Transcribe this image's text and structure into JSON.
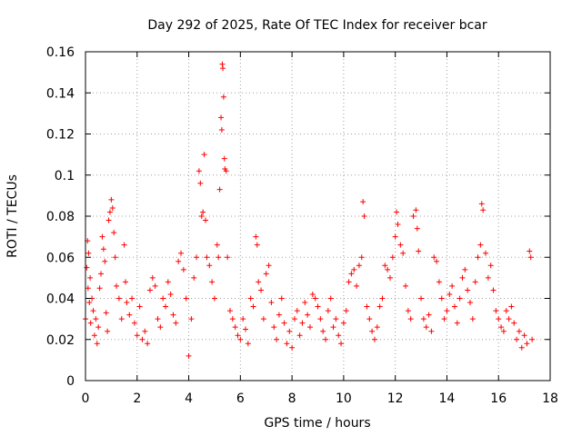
{
  "chart_data": {
    "type": "scatter",
    "title": "Day 292 of 2025, Rate Of TEC Index for receiver bcar",
    "xlabel": "GPS time / hours",
    "ylabel": "ROTI / TECUs",
    "xlim": [
      0,
      18
    ],
    "ylim": [
      0,
      0.16
    ],
    "xticks": [
      0,
      2,
      4,
      6,
      8,
      10,
      12,
      14,
      16,
      18
    ],
    "yticks": [
      0,
      0.02,
      0.04,
      0.06,
      0.08,
      0.1,
      0.12,
      0.14,
      0.16
    ],
    "xtick_labels": [
      "0",
      "2",
      "4",
      "6",
      "8",
      "10",
      "12",
      "14",
      "16",
      "18"
    ],
    "ytick_labels": [
      "0",
      "0.02",
      "0.04",
      "0.06",
      "0.08",
      "0.1",
      "0.12",
      "0.14",
      "0.16"
    ],
    "grid": true,
    "marker": "plus",
    "color": "#ff0000",
    "x_data_range": [
      0,
      17.3
    ],
    "series": [
      {
        "points": [
          [
            0.0,
            0.03
          ],
          [
            0.05,
            0.055
          ],
          [
            0.08,
            0.068
          ],
          [
            0.1,
            0.045
          ],
          [
            0.12,
            0.062
          ],
          [
            0.15,
            0.038
          ],
          [
            0.18,
            0.05
          ],
          [
            0.2,
            0.028
          ],
          [
            0.25,
            0.04
          ],
          [
            0.3,
            0.034
          ],
          [
            0.35,
            0.022
          ],
          [
            0.4,
            0.03
          ],
          [
            0.45,
            0.018
          ],
          [
            0.5,
            0.026
          ],
          [
            0.55,
            0.045
          ],
          [
            0.6,
            0.052
          ],
          [
            0.65,
            0.07
          ],
          [
            0.7,
            0.064
          ],
          [
            0.75,
            0.058
          ],
          [
            0.8,
            0.033
          ],
          [
            0.85,
            0.024
          ],
          [
            0.9,
            0.078
          ],
          [
            0.95,
            0.082
          ],
          [
            1.0,
            0.088
          ],
          [
            1.05,
            0.084
          ],
          [
            1.1,
            0.072
          ],
          [
            1.15,
            0.06
          ],
          [
            1.2,
            0.046
          ],
          [
            1.3,
            0.04
          ],
          [
            1.4,
            0.03
          ],
          [
            1.5,
            0.066
          ],
          [
            1.55,
            0.048
          ],
          [
            1.6,
            0.038
          ],
          [
            1.7,
            0.032
          ],
          [
            1.8,
            0.04
          ],
          [
            1.9,
            0.028
          ],
          [
            2.0,
            0.022
          ],
          [
            2.1,
            0.036
          ],
          [
            2.2,
            0.02
          ],
          [
            2.3,
            0.024
          ],
          [
            2.4,
            0.018
          ],
          [
            2.5,
            0.044
          ],
          [
            2.6,
            0.05
          ],
          [
            2.7,
            0.046
          ],
          [
            2.8,
            0.03
          ],
          [
            2.9,
            0.026
          ],
          [
            3.0,
            0.04
          ],
          [
            3.1,
            0.036
          ],
          [
            3.2,
            0.048
          ],
          [
            3.3,
            0.042
          ],
          [
            3.4,
            0.032
          ],
          [
            3.5,
            0.028
          ],
          [
            3.6,
            0.058
          ],
          [
            3.7,
            0.062
          ],
          [
            3.8,
            0.054
          ],
          [
            3.9,
            0.04
          ],
          [
            4.0,
            0.012
          ],
          [
            4.1,
            0.03
          ],
          [
            4.2,
            0.05
          ],
          [
            4.3,
            0.06
          ],
          [
            4.4,
            0.102
          ],
          [
            4.45,
            0.096
          ],
          [
            4.5,
            0.08
          ],
          [
            4.55,
            0.082
          ],
          [
            4.6,
            0.11
          ],
          [
            4.65,
            0.078
          ],
          [
            4.7,
            0.06
          ],
          [
            4.8,
            0.056
          ],
          [
            4.9,
            0.048
          ],
          [
            5.0,
            0.04
          ],
          [
            5.1,
            0.066
          ],
          [
            5.15,
            0.06
          ],
          [
            5.2,
            0.093
          ],
          [
            5.25,
            0.128
          ],
          [
            5.28,
            0.122
          ],
          [
            5.3,
            0.154
          ],
          [
            5.32,
            0.152
          ],
          [
            5.35,
            0.138
          ],
          [
            5.38,
            0.108
          ],
          [
            5.4,
            0.103
          ],
          [
            5.45,
            0.102
          ],
          [
            5.5,
            0.06
          ],
          [
            5.6,
            0.034
          ],
          [
            5.7,
            0.03
          ],
          [
            5.8,
            0.026
          ],
          [
            5.9,
            0.022
          ],
          [
            6.0,
            0.02
          ],
          [
            6.1,
            0.03
          ],
          [
            6.2,
            0.025
          ],
          [
            6.3,
            0.018
          ],
          [
            6.4,
            0.04
          ],
          [
            6.5,
            0.036
          ],
          [
            6.6,
            0.07
          ],
          [
            6.65,
            0.066
          ],
          [
            6.7,
            0.048
          ],
          [
            6.8,
            0.044
          ],
          [
            6.9,
            0.03
          ],
          [
            7.0,
            0.052
          ],
          [
            7.1,
            0.056
          ],
          [
            7.2,
            0.038
          ],
          [
            7.3,
            0.026
          ],
          [
            7.4,
            0.02
          ],
          [
            7.5,
            0.032
          ],
          [
            7.6,
            0.04
          ],
          [
            7.7,
            0.028
          ],
          [
            7.8,
            0.018
          ],
          [
            7.9,
            0.024
          ],
          [
            8.0,
            0.016
          ],
          [
            8.1,
            0.03
          ],
          [
            8.2,
            0.034
          ],
          [
            8.3,
            0.022
          ],
          [
            8.4,
            0.028
          ],
          [
            8.5,
            0.038
          ],
          [
            8.6,
            0.032
          ],
          [
            8.7,
            0.026
          ],
          [
            8.8,
            0.042
          ],
          [
            8.9,
            0.04
          ],
          [
            9.0,
            0.036
          ],
          [
            9.1,
            0.03
          ],
          [
            9.2,
            0.024
          ],
          [
            9.3,
            0.02
          ],
          [
            9.4,
            0.034
          ],
          [
            9.5,
            0.04
          ],
          [
            9.6,
            0.026
          ],
          [
            9.7,
            0.03
          ],
          [
            9.8,
            0.022
          ],
          [
            9.9,
            0.018
          ],
          [
            10.0,
            0.028
          ],
          [
            10.1,
            0.034
          ],
          [
            10.2,
            0.048
          ],
          [
            10.3,
            0.052
          ],
          [
            10.4,
            0.054
          ],
          [
            10.5,
            0.046
          ],
          [
            10.6,
            0.056
          ],
          [
            10.7,
            0.06
          ],
          [
            10.75,
            0.087
          ],
          [
            10.8,
            0.08
          ],
          [
            10.9,
            0.036
          ],
          [
            11.0,
            0.03
          ],
          [
            11.1,
            0.024
          ],
          [
            11.2,
            0.02
          ],
          [
            11.3,
            0.026
          ],
          [
            11.4,
            0.036
          ],
          [
            11.5,
            0.04
          ],
          [
            11.6,
            0.056
          ],
          [
            11.7,
            0.054
          ],
          [
            11.8,
            0.05
          ],
          [
            11.9,
            0.06
          ],
          [
            12.0,
            0.07
          ],
          [
            12.05,
            0.082
          ],
          [
            12.1,
            0.076
          ],
          [
            12.2,
            0.066
          ],
          [
            12.3,
            0.062
          ],
          [
            12.4,
            0.046
          ],
          [
            12.5,
            0.034
          ],
          [
            12.6,
            0.03
          ],
          [
            12.7,
            0.08
          ],
          [
            12.8,
            0.083
          ],
          [
            12.85,
            0.074
          ],
          [
            12.9,
            0.063
          ],
          [
            13.0,
            0.04
          ],
          [
            13.1,
            0.03
          ],
          [
            13.2,
            0.026
          ],
          [
            13.3,
            0.032
          ],
          [
            13.4,
            0.024
          ],
          [
            13.5,
            0.06
          ],
          [
            13.6,
            0.058
          ],
          [
            13.7,
            0.048
          ],
          [
            13.8,
            0.04
          ],
          [
            13.9,
            0.03
          ],
          [
            14.0,
            0.034
          ],
          [
            14.1,
            0.042
          ],
          [
            14.2,
            0.046
          ],
          [
            14.3,
            0.036
          ],
          [
            14.4,
            0.028
          ],
          [
            14.5,
            0.04
          ],
          [
            14.6,
            0.05
          ],
          [
            14.7,
            0.054
          ],
          [
            14.8,
            0.044
          ],
          [
            14.9,
            0.038
          ],
          [
            15.0,
            0.03
          ],
          [
            15.1,
            0.048
          ],
          [
            15.2,
            0.06
          ],
          [
            15.3,
            0.066
          ],
          [
            15.35,
            0.086
          ],
          [
            15.4,
            0.083
          ],
          [
            15.5,
            0.062
          ],
          [
            15.6,
            0.05
          ],
          [
            15.7,
            0.056
          ],
          [
            15.8,
            0.044
          ],
          [
            15.9,
            0.034
          ],
          [
            16.0,
            0.03
          ],
          [
            16.1,
            0.026
          ],
          [
            16.2,
            0.024
          ],
          [
            16.3,
            0.034
          ],
          [
            16.4,
            0.03
          ],
          [
            16.5,
            0.036
          ],
          [
            16.6,
            0.028
          ],
          [
            16.7,
            0.02
          ],
          [
            16.8,
            0.024
          ],
          [
            16.9,
            0.016
          ],
          [
            17.0,
            0.022
          ],
          [
            17.1,
            0.018
          ],
          [
            17.2,
            0.063
          ],
          [
            17.25,
            0.06
          ],
          [
            17.3,
            0.02
          ]
        ]
      }
    ]
  }
}
